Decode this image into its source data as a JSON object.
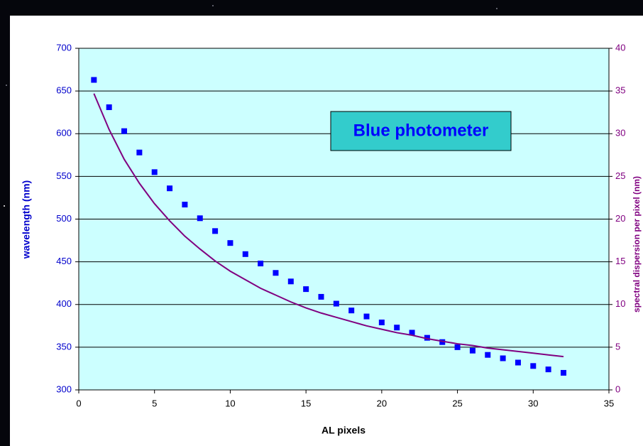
{
  "chart_data": {
    "type": "scatter",
    "x_label": "AL pixels",
    "y_label": "wavelength (nm)",
    "y2_label": "spectral dispersion per pixel (nm)",
    "annotation": "Blue photometer",
    "x": [
      1,
      2,
      3,
      4,
      5,
      6,
      7,
      8,
      9,
      10,
      11,
      12,
      13,
      14,
      15,
      16,
      17,
      18,
      19,
      20,
      21,
      22,
      23,
      24,
      25,
      26,
      27,
      28,
      29,
      30,
      31,
      32
    ],
    "series": [
      {
        "type": "scatter",
        "color": "#0000ff",
        "values": [
          663,
          631,
          603,
          578,
          555,
          536,
          517,
          501,
          486,
          472,
          459,
          448,
          437,
          427,
          418,
          409,
          401,
          393,
          386,
          379,
          373,
          367,
          361,
          356,
          350,
          346,
          341,
          337,
          332,
          328,
          324,
          320
        ]
      },
      {
        "type": "line",
        "color": "#800080",
        "axis": "y2",
        "values": [
          34.7,
          30.5,
          27.0,
          24.2,
          21.8,
          19.8,
          18.0,
          16.5,
          15.1,
          13.9,
          12.9,
          11.9,
          11.1,
          10.3,
          9.6,
          9.0,
          8.5,
          8.0,
          7.5,
          7.1,
          6.7,
          6.4,
          6.0,
          5.7,
          5.4,
          5.2,
          4.9,
          4.7,
          4.5,
          4.3,
          4.1,
          3.9
        ]
      }
    ],
    "xlim": [
      0,
      35
    ],
    "xticks": [
      0,
      5,
      10,
      15,
      20,
      25,
      30,
      35
    ],
    "ylim": [
      300,
      700
    ],
    "yticks": [
      300,
      350,
      400,
      450,
      500,
      550,
      600,
      650,
      700
    ],
    "y2lim": [
      0,
      40
    ],
    "y2ticks": [
      0,
      5,
      10,
      15,
      20,
      25,
      30,
      35,
      40
    ],
    "grid": true
  }
}
